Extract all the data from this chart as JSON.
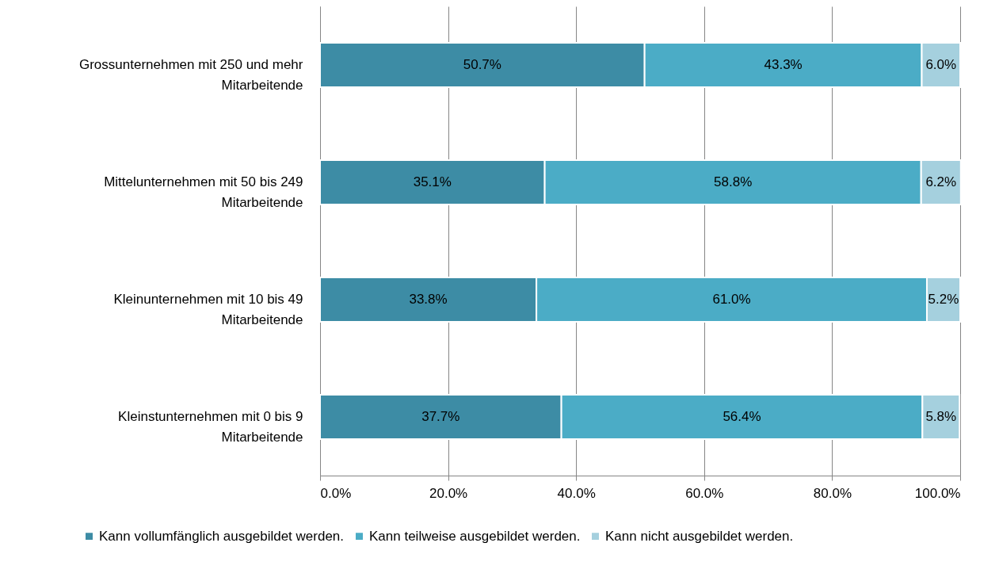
{
  "chart_data": {
    "type": "bar",
    "orientation": "horizontal",
    "stacked": true,
    "categories": [
      "Grossunternehmen mit 250 und mehr Mitarbeitende",
      "Mittelunternehmen mit 50 bis 249 Mitarbeitende",
      "Kleinunternehmen mit 10 bis 49 Mitarbeitende",
      "Kleinstunternehmen mit 0 bis 9 Mitarbeitende"
    ],
    "series": [
      {
        "name": "Kann vollumfänglich ausgebildet werden.",
        "color": "#3d8ca5",
        "values": [
          50.7,
          35.1,
          33.8,
          37.7
        ],
        "value_labels": [
          "50.7%",
          "35.1%",
          "33.8%",
          "37.7%"
        ]
      },
      {
        "name": "Kann teilweise ausgebildet werden.",
        "color": "#4bacc6",
        "values": [
          43.3,
          58.8,
          61.0,
          56.4
        ],
        "value_labels": [
          "43.3%",
          "58.8%",
          "61.0%",
          "56.4%"
        ]
      },
      {
        "name": "Kann nicht ausgebildet werden.",
        "color": "#a5d0de",
        "values": [
          6.0,
          6.2,
          5.2,
          5.8
        ],
        "value_labels": [
          "6.0%",
          "6.2%",
          "5.2%",
          "5.8%"
        ]
      }
    ],
    "xlim": [
      0,
      100
    ],
    "xticks": [
      {
        "value": 0,
        "label": "0.0%"
      },
      {
        "value": 20,
        "label": "20.0%"
      },
      {
        "value": 40,
        "label": "40.0%"
      },
      {
        "value": 60,
        "label": "60.0%"
      },
      {
        "value": 80,
        "label": "80.0%"
      },
      {
        "value": 100,
        "label": "100.0%"
      }
    ],
    "grid": "x",
    "legend": "bottom"
  }
}
